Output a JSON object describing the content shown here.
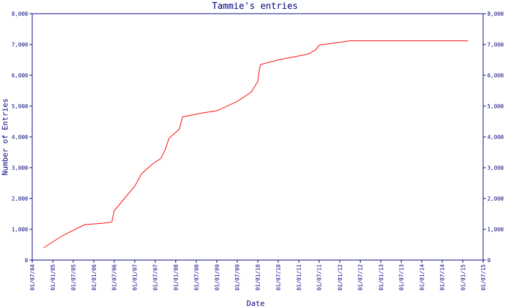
{
  "chart_data": {
    "type": "line",
    "title": "Tammie's entries",
    "xlabel": "Date",
    "ylabel": "Number of Entries",
    "colors": {
      "axis": "#000080",
      "line": "#ff0000",
      "text": "#000080"
    },
    "ylim": [
      0,
      8000
    ],
    "y_ticks": [
      0,
      1000,
      2000,
      3000,
      4000,
      5000,
      6000,
      7000,
      8000
    ],
    "y_tick_labels": [
      "0",
      "1,000",
      "2,000",
      "3,000",
      "4,000",
      "5,000",
      "6,000",
      "7,000",
      "8,000"
    ],
    "xlim": [
      "2004-07-01",
      "2015-07-01"
    ],
    "x_ticks": [
      "2004-07-01",
      "2005-01-01",
      "2005-07-01",
      "2006-01-01",
      "2006-07-01",
      "2007-01-01",
      "2007-07-01",
      "2008-01-01",
      "2008-07-01",
      "2009-01-01",
      "2009-07-01",
      "2010-01-01",
      "2010-07-01",
      "2011-01-01",
      "2011-07-01",
      "2012-01-01",
      "2012-07-01",
      "2013-01-01",
      "2013-07-01",
      "2014-01-01",
      "2014-07-01",
      "2015-01-01",
      "2015-07-01"
    ],
    "x_tick_labels": [
      "01/07/04",
      "01/01/05",
      "01/07/05",
      "01/01/06",
      "01/07/06",
      "01/01/07",
      "01/07/07",
      "01/01/08",
      "01/07/08",
      "01/01/09",
      "01/07/09",
      "01/01/10",
      "01/07/10",
      "01/01/11",
      "01/07/11",
      "01/01/12",
      "01/07/12",
      "01/01/13",
      "01/07/13",
      "01/01/14",
      "01/07/14",
      "01/01/15",
      "01/07/15"
    ],
    "grid": false,
    "right_axis": true,
    "series": [
      {
        "x": [
          "2004-10-10",
          "2005-04-01",
          "2005-10-10",
          "2006-04-01",
          "2006-06-10",
          "2006-07-01",
          "2006-10-01",
          "2007-01-01",
          "2007-03-01",
          "2007-06-01",
          "2007-08-20",
          "2007-09-10",
          "2007-10-01",
          "2007-11-01",
          "2008-01-01",
          "2008-02-01",
          "2008-03-01",
          "2008-09-01",
          "2009-01-01",
          "2009-07-01",
          "2009-11-01",
          "2010-01-01",
          "2010-01-15",
          "2010-01-25",
          "2010-07-01",
          "2011-02-01",
          "2011-04-01",
          "2011-06-01",
          "2011-07-01",
          "2012-01-01",
          "2012-04-01",
          "2015-02-15"
        ],
        "y": [
          400,
          800,
          1150,
          1200,
          1230,
          1600,
          2000,
          2400,
          2800,
          3100,
          3300,
          3450,
          3600,
          3950,
          4150,
          4250,
          4650,
          4780,
          4850,
          5150,
          5450,
          5800,
          6200,
          6350,
          6500,
          6650,
          6700,
          6830,
          6980,
          7070,
          7120,
          7120
        ]
      }
    ]
  }
}
